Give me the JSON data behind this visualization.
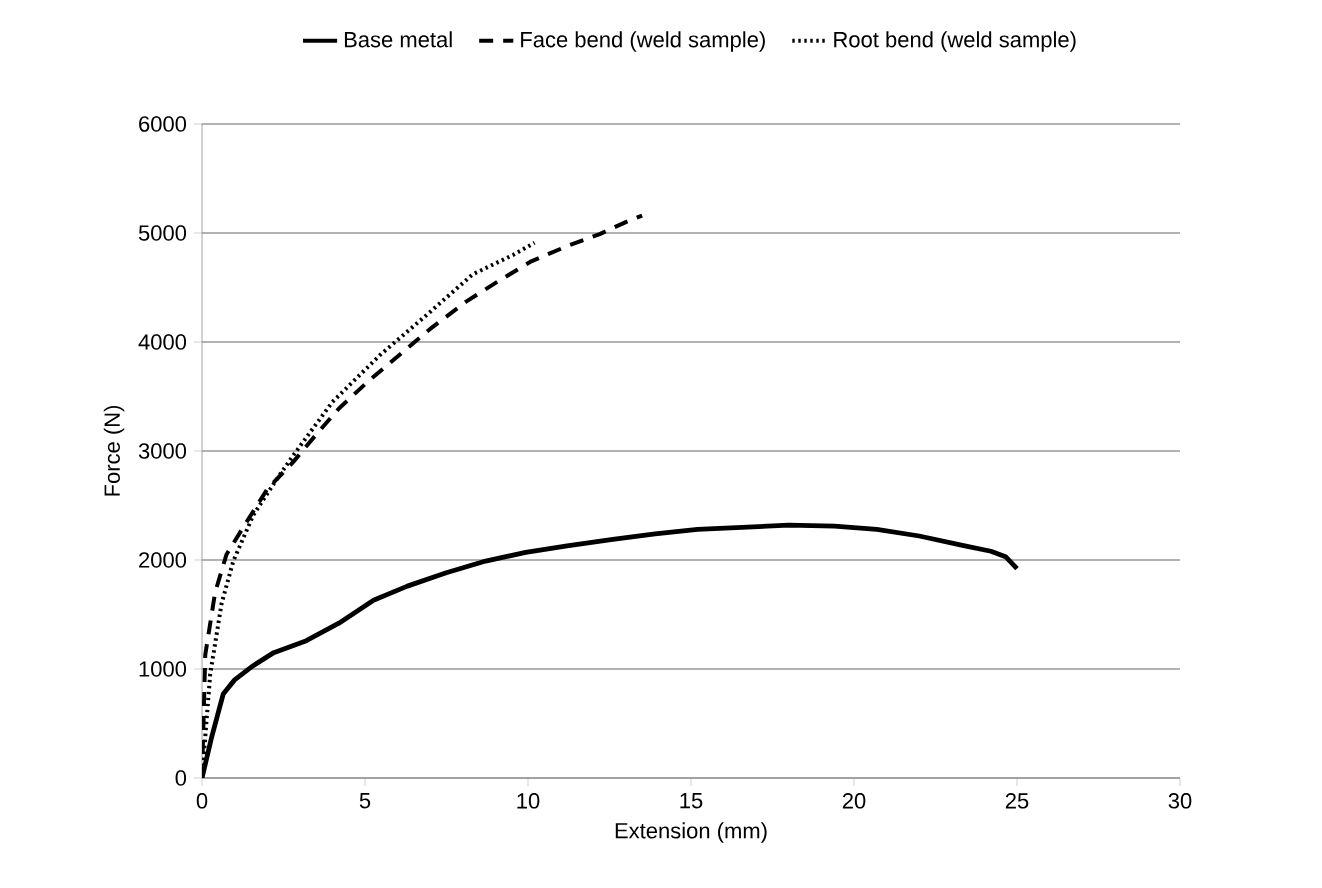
{
  "chart_data": {
    "type": "line",
    "xlabel": "Extension (mm)",
    "ylabel": "Force (N)",
    "xlim": [
      0,
      30
    ],
    "xticks": [
      0,
      5,
      10,
      15,
      20,
      25,
      30
    ],
    "ylim": [
      0,
      6000
    ],
    "yticks": [
      0,
      1000,
      2000,
      3000,
      4000,
      5000,
      6000
    ],
    "grid": "y",
    "legend": "top",
    "series": [
      {
        "name": "Base metal",
        "color": "#000000",
        "line_style": "solid",
        "x": [
          0,
          0.3,
          0.65,
          1.0,
          1.57,
          2.2,
          3.2,
          4.2,
          5.26,
          6.3,
          7.47,
          8.7,
          9.93,
          11.2,
          12.6,
          13.9,
          15.2,
          16.6,
          18.0,
          19.4,
          20.7,
          22.0,
          23.4,
          24.2,
          24.65,
          25.0
        ],
        "values": [
          0,
          380,
          770,
          900,
          1030,
          1150,
          1260,
          1420,
          1630,
          1760,
          1880,
          1990,
          2070,
          2130,
          2190,
          2240,
          2280,
          2300,
          2320,
          2310,
          2280,
          2220,
          2130,
          2080,
          2030,
          1920
        ]
      },
      {
        "name": "Face bend (weld sample)",
        "color": "#000000",
        "line_style": "dashed",
        "x": [
          0,
          0.1,
          0.4,
          0.75,
          1.37,
          2.0,
          2.8,
          3.5,
          4.2,
          5.1,
          6.05,
          7.0,
          8.1,
          9.1,
          10.1,
          11.2,
          12.2,
          13.0,
          13.5
        ],
        "values": [
          0,
          1130,
          1700,
          2050,
          2350,
          2650,
          2900,
          3150,
          3390,
          3640,
          3880,
          4120,
          4370,
          4560,
          4740,
          4880,
          4990,
          5100,
          5160
        ]
      },
      {
        "name": "Root bend (weld sample)",
        "color": "#000000",
        "line_style": "dotted",
        "x": [
          0,
          0.25,
          0.6,
          0.96,
          1.57,
          2.2,
          2.8,
          4.0,
          5.46,
          6.9,
          8.3,
          9.55,
          10.2
        ],
        "values": [
          0,
          950,
          1600,
          1990,
          2410,
          2700,
          2960,
          3450,
          3880,
          4250,
          4620,
          4800,
          4910
        ]
      }
    ]
  }
}
